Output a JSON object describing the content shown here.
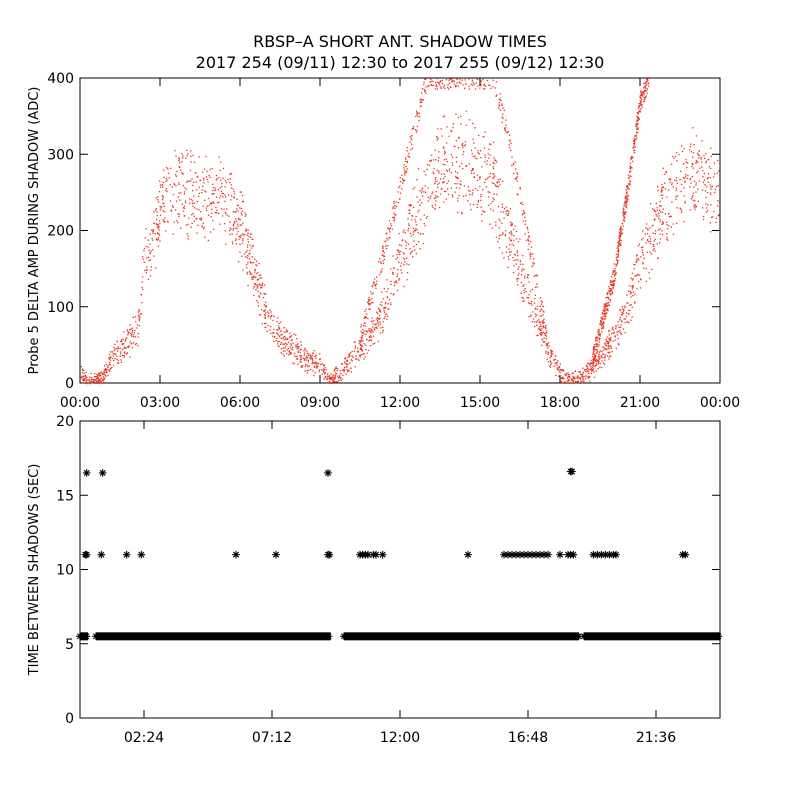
{
  "title_line1": "RBSP–A SHORT ANT. SHADOW TIMES",
  "title_line2": "2017 254 (09/11) 12:30 to 2017 255 (09/12) 12:30",
  "chart_data": [
    {
      "type": "scatter",
      "name": "probe5-delta-amp",
      "ylabel": "Probe 5 DELTA AMP DURING SHADOW (ADC)",
      "xlabel": "",
      "x_units": "hours",
      "xlim": [
        0,
        24
      ],
      "ylim": [
        0,
        400
      ],
      "xtick_values": [
        0,
        3,
        6,
        9,
        12,
        15,
        18,
        21,
        24
      ],
      "xtick_labels": [
        "00:00",
        "03:00",
        "06:00",
        "09:00",
        "12:00",
        "15:00",
        "18:00",
        "21:00",
        "00:00"
      ],
      "ytick_values": [
        0,
        100,
        200,
        300,
        400
      ],
      "ytick_labels": [
        "0",
        "100",
        "200",
        "300",
        "400"
      ],
      "color": "#e8321e",
      "envelope_points": [
        [
          0.0,
          15
        ],
        [
          0.3,
          2
        ],
        [
          0.8,
          5
        ],
        [
          1.2,
          35
        ],
        [
          1.6,
          48
        ],
        [
          2.0,
          65
        ],
        [
          2.2,
          80
        ],
        [
          2.4,
          160
        ],
        [
          2.7,
          175
        ],
        [
          3.0,
          235
        ],
        [
          3.5,
          255
        ],
        [
          4.0,
          250
        ],
        [
          4.5,
          245
        ],
        [
          5.0,
          255
        ],
        [
          5.5,
          245
        ],
        [
          6.0,
          205
        ],
        [
          6.5,
          150
        ],
        [
          7.0,
          85
        ],
        [
          7.5,
          60
        ],
        [
          8.0,
          45
        ],
        [
          8.5,
          30
        ],
        [
          9.0,
          25
        ],
        [
          9.4,
          5
        ],
        [
          9.8,
          15
        ],
        [
          10.3,
          40
        ],
        [
          11.0,
          70
        ],
        [
          11.5,
          110
        ],
        [
          12.0,
          160
        ],
        [
          12.5,
          210
        ],
        [
          13.0,
          255
        ],
        [
          13.5,
          280
        ],
        [
          14.0,
          290
        ],
        [
          14.5,
          290
        ],
        [
          15.0,
          280
        ],
        [
          15.5,
          255
        ],
        [
          16.0,
          205
        ],
        [
          16.5,
          150
        ],
        [
          17.0,
          95
        ],
        [
          17.5,
          45
        ],
        [
          18.0,
          12
        ],
        [
          18.4,
          2
        ],
        [
          19.0,
          15
        ],
        [
          19.5,
          32
        ],
        [
          20.0,
          60
        ],
        [
          20.5,
          100
        ],
        [
          21.0,
          160
        ],
        [
          21.5,
          200
        ],
        [
          22.0,
          240
        ],
        [
          22.5,
          265
        ],
        [
          23.0,
          275
        ],
        [
          23.5,
          265
        ],
        [
          24.0,
          235
        ]
      ],
      "upper_branches": [
        {
          "x": [
            10.5,
            11.5,
            12.5,
            13.0,
            14.0,
            15.0,
            15.5,
            16.0,
            16.5,
            17.0,
            17.5
          ],
          "y": [
            60,
            190,
            330,
            400,
            400,
            400,
            400,
            330,
            240,
            150,
            60
          ]
        },
        {
          "x": [
            19.2,
            20.0,
            20.5,
            21.0,
            21.3
          ],
          "y": [
            30,
            140,
            250,
            370,
            400
          ]
        }
      ]
    },
    {
      "type": "scatter",
      "name": "time-between-shadows",
      "ylabel": "TIME BETWEEN SHADOWS (SEC)",
      "xlabel": "",
      "x_units": "hours",
      "xlim": [
        0,
        24
      ],
      "ylim": [
        0,
        20
      ],
      "xtick_values": [
        2.4,
        7.2,
        12.0,
        16.8,
        21.6
      ],
      "xtick_labels": [
        "02:24",
        "07:12",
        "12:00",
        "16:48",
        "21:36"
      ],
      "ytick_values": [
        0,
        5,
        10,
        15,
        20
      ],
      "ytick_labels": [
        "0",
        "5",
        "10",
        "15",
        "20"
      ],
      "color": "#000000",
      "marker": "*",
      "baseline_value": 5.5,
      "baseline_ranges": [
        [
          0.0,
          0.3
        ],
        [
          0.6,
          9.4
        ],
        [
          9.9,
          18.7
        ],
        [
          18.9,
          24.0
        ]
      ],
      "points": [
        [
          0.25,
          16.5
        ],
        [
          0.85,
          16.5
        ],
        [
          9.3,
          16.5
        ],
        [
          18.4,
          16.6
        ],
        [
          18.45,
          16.6
        ],
        [
          0.2,
          11.0
        ],
        [
          0.25,
          11.0
        ],
        [
          0.8,
          11.0
        ],
        [
          1.75,
          11.0
        ],
        [
          2.3,
          11.0
        ],
        [
          5.85,
          11.0
        ],
        [
          7.35,
          11.0
        ],
        [
          9.3,
          11.0
        ],
        [
          9.35,
          11.0
        ],
        [
          10.5,
          11.0
        ],
        [
          10.6,
          11.0
        ],
        [
          10.7,
          11.0
        ],
        [
          10.8,
          11.0
        ],
        [
          11.0,
          11.0
        ],
        [
          11.1,
          11.0
        ],
        [
          11.35,
          11.0
        ],
        [
          14.55,
          11.0
        ],
        [
          15.9,
          11.0
        ],
        [
          16.05,
          11.0
        ],
        [
          16.2,
          11.0
        ],
        [
          16.35,
          11.0
        ],
        [
          16.5,
          11.0
        ],
        [
          16.65,
          11.0
        ],
        [
          16.8,
          11.0
        ],
        [
          16.95,
          11.0
        ],
        [
          17.1,
          11.0
        ],
        [
          17.25,
          11.0
        ],
        [
          17.4,
          11.0
        ],
        [
          17.55,
          11.0
        ],
        [
          18.0,
          11.0
        ],
        [
          18.3,
          11.0
        ],
        [
          18.4,
          11.0
        ],
        [
          18.5,
          11.0
        ],
        [
          19.25,
          11.0
        ],
        [
          19.4,
          11.0
        ],
        [
          19.55,
          11.0
        ],
        [
          19.7,
          11.0
        ],
        [
          19.85,
          11.0
        ],
        [
          20.0,
          11.0
        ],
        [
          20.1,
          11.0
        ],
        [
          22.6,
          11.0
        ],
        [
          22.7,
          11.0
        ]
      ]
    }
  ]
}
